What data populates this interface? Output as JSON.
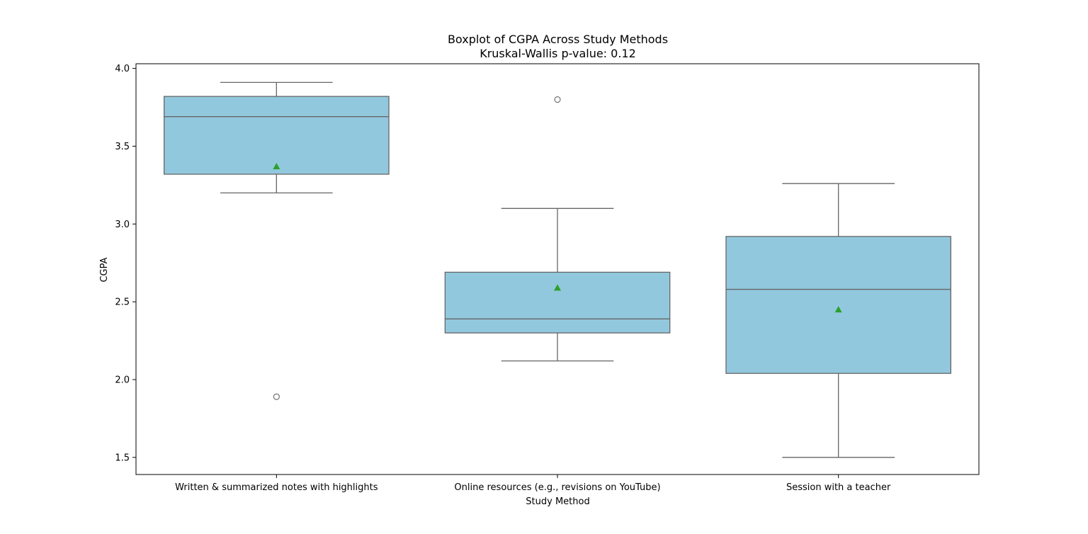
{
  "chart_data": {
    "type": "boxplot",
    "title": "Boxplot of CGPA Across Study Methods",
    "subtitle": "Kruskal-Wallis p-value: 0.12",
    "xlabel": "Study Method",
    "ylabel": "CGPA",
    "ylim": [
      1.39,
      4.03
    ],
    "yticks": [
      1.5,
      2.0,
      2.5,
      3.0,
      3.5,
      4.0
    ],
    "ytick_labels": [
      "1.5",
      "2.0",
      "2.5",
      "3.0",
      "3.5",
      "4.0"
    ],
    "grid": false,
    "categories": [
      "Written & summarized notes with highlights",
      "Online resources (e.g., revisions on YouTube)",
      "Session with a teacher"
    ],
    "boxes": [
      {
        "whisker_low": 3.2,
        "q1": 3.32,
        "median": 3.69,
        "q3": 3.82,
        "whisker_high": 3.91,
        "mean": 3.37,
        "outliers": [
          1.89
        ]
      },
      {
        "whisker_low": 2.12,
        "q1": 2.3,
        "median": 2.39,
        "q3": 2.69,
        "whisker_high": 3.1,
        "mean": 2.59,
        "outliers": [
          3.8
        ]
      },
      {
        "whisker_low": 1.5,
        "q1": 2.04,
        "median": 2.58,
        "q3": 2.92,
        "whisker_high": 3.26,
        "mean": 2.45,
        "outliers": []
      }
    ],
    "colors": {
      "box_fill": "#92c8de",
      "box_edge": "#666666",
      "mean_marker": "#2ca02c",
      "outlier_edge": "#666666"
    }
  }
}
